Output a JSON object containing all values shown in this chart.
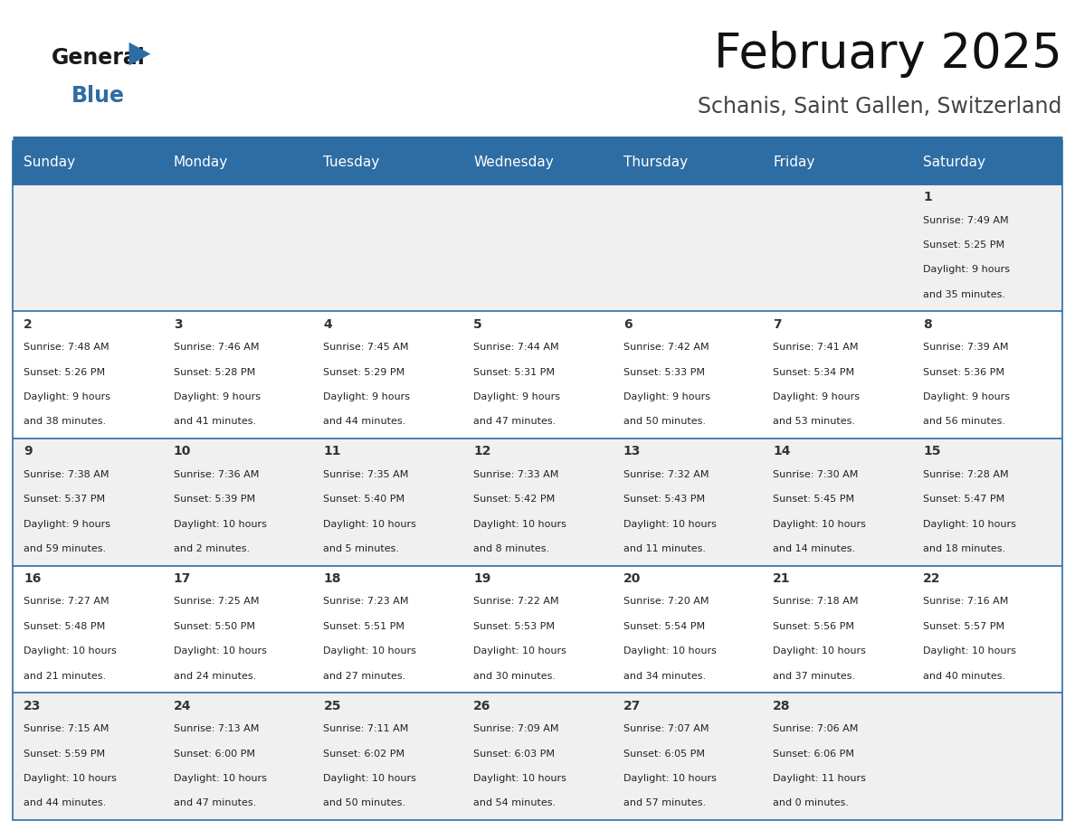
{
  "title": "February 2025",
  "subtitle": "Schanis, Saint Gallen, Switzerland",
  "header_bg": "#2E6DA4",
  "header_text_color": "#FFFFFF",
  "cell_bg_row0": "#F0F0F0",
  "cell_bg_row1": "#FFFFFF",
  "cell_bg_row2": "#F0F0F0",
  "cell_bg_row3": "#FFFFFF",
  "cell_bg_row4": "#F0F0F0",
  "border_color": "#2E6DA4",
  "text_color": "#222222",
  "day_num_color": "#333333",
  "day_headers": [
    "Sunday",
    "Monday",
    "Tuesday",
    "Wednesday",
    "Thursday",
    "Friday",
    "Saturday"
  ],
  "days": [
    {
      "day": 1,
      "col": 6,
      "row": 0,
      "sunrise": "7:49 AM",
      "sunset": "5:25 PM",
      "daylight_l1": "Daylight: 9 hours",
      "daylight_l2": "and 35 minutes."
    },
    {
      "day": 2,
      "col": 0,
      "row": 1,
      "sunrise": "7:48 AM",
      "sunset": "5:26 PM",
      "daylight_l1": "Daylight: 9 hours",
      "daylight_l2": "and 38 minutes."
    },
    {
      "day": 3,
      "col": 1,
      "row": 1,
      "sunrise": "7:46 AM",
      "sunset": "5:28 PM",
      "daylight_l1": "Daylight: 9 hours",
      "daylight_l2": "and 41 minutes."
    },
    {
      "day": 4,
      "col": 2,
      "row": 1,
      "sunrise": "7:45 AM",
      "sunset": "5:29 PM",
      "daylight_l1": "Daylight: 9 hours",
      "daylight_l2": "and 44 minutes."
    },
    {
      "day": 5,
      "col": 3,
      "row": 1,
      "sunrise": "7:44 AM",
      "sunset": "5:31 PM",
      "daylight_l1": "Daylight: 9 hours",
      "daylight_l2": "and 47 minutes."
    },
    {
      "day": 6,
      "col": 4,
      "row": 1,
      "sunrise": "7:42 AM",
      "sunset": "5:33 PM",
      "daylight_l1": "Daylight: 9 hours",
      "daylight_l2": "and 50 minutes."
    },
    {
      "day": 7,
      "col": 5,
      "row": 1,
      "sunrise": "7:41 AM",
      "sunset": "5:34 PM",
      "daylight_l1": "Daylight: 9 hours",
      "daylight_l2": "and 53 minutes."
    },
    {
      "day": 8,
      "col": 6,
      "row": 1,
      "sunrise": "7:39 AM",
      "sunset": "5:36 PM",
      "daylight_l1": "Daylight: 9 hours",
      "daylight_l2": "and 56 minutes."
    },
    {
      "day": 9,
      "col": 0,
      "row": 2,
      "sunrise": "7:38 AM",
      "sunset": "5:37 PM",
      "daylight_l1": "Daylight: 9 hours",
      "daylight_l2": "and 59 minutes."
    },
    {
      "day": 10,
      "col": 1,
      "row": 2,
      "sunrise": "7:36 AM",
      "sunset": "5:39 PM",
      "daylight_l1": "Daylight: 10 hours",
      "daylight_l2": "and 2 minutes."
    },
    {
      "day": 11,
      "col": 2,
      "row": 2,
      "sunrise": "7:35 AM",
      "sunset": "5:40 PM",
      "daylight_l1": "Daylight: 10 hours",
      "daylight_l2": "and 5 minutes."
    },
    {
      "day": 12,
      "col": 3,
      "row": 2,
      "sunrise": "7:33 AM",
      "sunset": "5:42 PM",
      "daylight_l1": "Daylight: 10 hours",
      "daylight_l2": "and 8 minutes."
    },
    {
      "day": 13,
      "col": 4,
      "row": 2,
      "sunrise": "7:32 AM",
      "sunset": "5:43 PM",
      "daylight_l1": "Daylight: 10 hours",
      "daylight_l2": "and 11 minutes."
    },
    {
      "day": 14,
      "col": 5,
      "row": 2,
      "sunrise": "7:30 AM",
      "sunset": "5:45 PM",
      "daylight_l1": "Daylight: 10 hours",
      "daylight_l2": "and 14 minutes."
    },
    {
      "day": 15,
      "col": 6,
      "row": 2,
      "sunrise": "7:28 AM",
      "sunset": "5:47 PM",
      "daylight_l1": "Daylight: 10 hours",
      "daylight_l2": "and 18 minutes."
    },
    {
      "day": 16,
      "col": 0,
      "row": 3,
      "sunrise": "7:27 AM",
      "sunset": "5:48 PM",
      "daylight_l1": "Daylight: 10 hours",
      "daylight_l2": "and 21 minutes."
    },
    {
      "day": 17,
      "col": 1,
      "row": 3,
      "sunrise": "7:25 AM",
      "sunset": "5:50 PM",
      "daylight_l1": "Daylight: 10 hours",
      "daylight_l2": "and 24 minutes."
    },
    {
      "day": 18,
      "col": 2,
      "row": 3,
      "sunrise": "7:23 AM",
      "sunset": "5:51 PM",
      "daylight_l1": "Daylight: 10 hours",
      "daylight_l2": "and 27 minutes."
    },
    {
      "day": 19,
      "col": 3,
      "row": 3,
      "sunrise": "7:22 AM",
      "sunset": "5:53 PM",
      "daylight_l1": "Daylight: 10 hours",
      "daylight_l2": "and 30 minutes."
    },
    {
      "day": 20,
      "col": 4,
      "row": 3,
      "sunrise": "7:20 AM",
      "sunset": "5:54 PM",
      "daylight_l1": "Daylight: 10 hours",
      "daylight_l2": "and 34 minutes."
    },
    {
      "day": 21,
      "col": 5,
      "row": 3,
      "sunrise": "7:18 AM",
      "sunset": "5:56 PM",
      "daylight_l1": "Daylight: 10 hours",
      "daylight_l2": "and 37 minutes."
    },
    {
      "day": 22,
      "col": 6,
      "row": 3,
      "sunrise": "7:16 AM",
      "sunset": "5:57 PM",
      "daylight_l1": "Daylight: 10 hours",
      "daylight_l2": "and 40 minutes."
    },
    {
      "day": 23,
      "col": 0,
      "row": 4,
      "sunrise": "7:15 AM",
      "sunset": "5:59 PM",
      "daylight_l1": "Daylight: 10 hours",
      "daylight_l2": "and 44 minutes."
    },
    {
      "day": 24,
      "col": 1,
      "row": 4,
      "sunrise": "7:13 AM",
      "sunset": "6:00 PM",
      "daylight_l1": "Daylight: 10 hours",
      "daylight_l2": "and 47 minutes."
    },
    {
      "day": 25,
      "col": 2,
      "row": 4,
      "sunrise": "7:11 AM",
      "sunset": "6:02 PM",
      "daylight_l1": "Daylight: 10 hours",
      "daylight_l2": "and 50 minutes."
    },
    {
      "day": 26,
      "col": 3,
      "row": 4,
      "sunrise": "7:09 AM",
      "sunset": "6:03 PM",
      "daylight_l1": "Daylight: 10 hours",
      "daylight_l2": "and 54 minutes."
    },
    {
      "day": 27,
      "col": 4,
      "row": 4,
      "sunrise": "7:07 AM",
      "sunset": "6:05 PM",
      "daylight_l1": "Daylight: 10 hours",
      "daylight_l2": "and 57 minutes."
    },
    {
      "day": 28,
      "col": 5,
      "row": 4,
      "sunrise": "7:06 AM",
      "sunset": "6:06 PM",
      "daylight_l1": "Daylight: 11 hours",
      "daylight_l2": "and 0 minutes."
    }
  ],
  "num_rows": 5,
  "num_cols": 7,
  "fig_width": 11.88,
  "fig_height": 9.18,
  "dpi": 100
}
